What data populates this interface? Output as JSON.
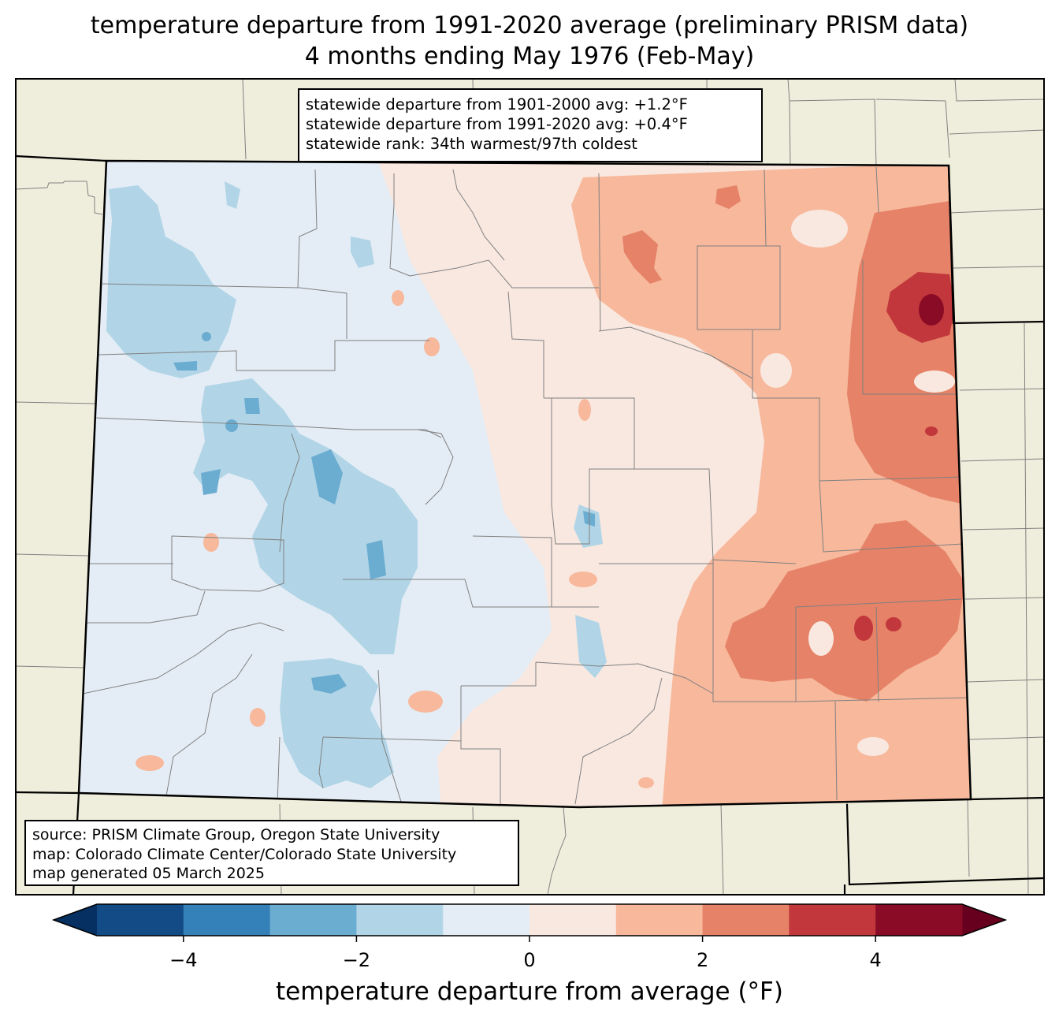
{
  "title": {
    "line1": "temperature departure from 1991-2020 average (preliminary PRISM data)",
    "line2": "4 months ending May 1976 (Feb-May)"
  },
  "stats_box": {
    "line1": "statewide departure from 1901-2000 avg: +1.2°F",
    "line2": "statewide departure from 1991-2020 avg: +0.4°F",
    "line3": "statewide rank: 34th warmest/97th coldest"
  },
  "source_box": {
    "line1": "source: PRISM Climate Group, Oregon State University",
    "line2": "map: Colorado Climate Center/Colorado State University",
    "line3": "map generated 05 March 2025"
  },
  "colorbar": {
    "label": "temperature departure from average (°F)",
    "ticks": [
      {
        "value": -4,
        "label": "−4"
      },
      {
        "value": -2,
        "label": "−2"
      },
      {
        "value": 0,
        "label": "0"
      },
      {
        "value": 2,
        "label": "2"
      },
      {
        "value": 4,
        "label": "4"
      }
    ],
    "range": [
      -5,
      5
    ],
    "bins": [
      {
        "from": -5,
        "to": -4,
        "color": "#134b87"
      },
      {
        "from": -4,
        "to": -3,
        "color": "#3480b9"
      },
      {
        "from": -3,
        "to": -2,
        "color": "#6bacd1"
      },
      {
        "from": -2,
        "to": -1,
        "color": "#b1d5e7"
      },
      {
        "from": -1,
        "to": 0,
        "color": "#e4edf5"
      },
      {
        "from": 0,
        "to": 1,
        "color": "#f9e8e0"
      },
      {
        "from": 1,
        "to": 2,
        "color": "#f7b89c"
      },
      {
        "from": 2,
        "to": 3,
        "color": "#e58267"
      },
      {
        "from": 3,
        "to": 4,
        "color": "#c2373c"
      },
      {
        "from": 4,
        "to": 5,
        "color": "#8a0b25"
      }
    ],
    "under_color": "#053061",
    "over_color": "#67001f"
  },
  "colors": {
    "land": "#efeedc",
    "state_border": "#000000",
    "county_border": "#808080"
  }
}
